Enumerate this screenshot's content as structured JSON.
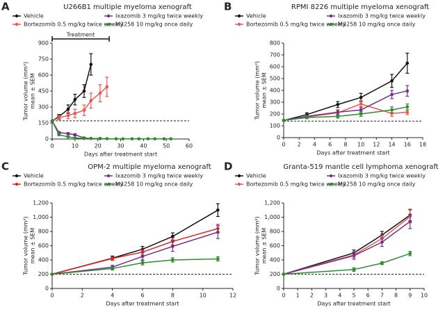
{
  "chart_data": [
    {
      "type": "line",
      "panel": "A",
      "title": "U266B1 multiple myeloma xenograft",
      "xlabel": "Days after treatment start",
      "ylabel": [
        "Tumor volume (mm³)",
        "mean ± SEM"
      ],
      "xlim": [
        0,
        60
      ],
      "xticks": [
        0,
        10,
        20,
        30,
        40,
        50,
        60
      ],
      "ylim": [
        0,
        900
      ],
      "yticks": [
        0,
        150,
        300,
        450,
        600,
        750,
        900
      ],
      "reference_line": 170,
      "treatment": {
        "label": "Treatment",
        "start": 0,
        "end": 25
      },
      "series": [
        {
          "name": "Vehicle",
          "color": "#111111",
          "x": [
            0,
            3,
            7,
            10,
            14,
            17
          ],
          "values": [
            170,
            210,
            280,
            370,
            450,
            700
          ],
          "errors": [
            0,
            20,
            40,
            50,
            60,
            100
          ]
        },
        {
          "name": "Bortezomib 0.5 mg/kg twice weekly",
          "color": "#e8584f",
          "x": [
            0,
            3,
            7,
            10,
            14,
            17,
            21,
            24
          ],
          "values": [
            170,
            200,
            220,
            240,
            270,
            360,
            430,
            490
          ],
          "errors": [
            0,
            20,
            30,
            40,
            50,
            70,
            80,
            90
          ]
        },
        {
          "name": "Ixazomib 3 mg/kg twice weekly",
          "color": "#7b2d8e",
          "x": [
            0,
            3,
            7,
            10,
            14,
            17,
            21
          ],
          "values": [
            170,
            60,
            50,
            40,
            10,
            5,
            5
          ],
          "errors": [
            0,
            10,
            10,
            10,
            5,
            3,
            3
          ]
        },
        {
          "name": "M3258 10 mg/kg once daily",
          "color": "#2e8b2e",
          "x": [
            0,
            3,
            7,
            10,
            14,
            17,
            21,
            24,
            28,
            31,
            35,
            38,
            42,
            45,
            49,
            52
          ],
          "values": [
            170,
            40,
            20,
            10,
            5,
            5,
            3,
            3,
            2,
            2,
            2,
            2,
            2,
            2,
            2,
            2
          ],
          "errors": [
            0,
            8,
            5,
            3,
            2,
            2,
            1,
            1,
            1,
            1,
            1,
            1,
            1,
            1,
            1,
            1
          ]
        }
      ]
    },
    {
      "type": "line",
      "panel": "B",
      "title": "RPMI 8226 multiple myeloma xenograft",
      "xlabel": "Days after treatment start",
      "ylabel": [
        "Tumor volume (mm³)",
        "mean ± SEM"
      ],
      "xlim": [
        0,
        18
      ],
      "xticks": [
        0,
        2,
        4,
        6,
        8,
        10,
        12,
        14,
        16,
        18
      ],
      "ylim": [
        0,
        800
      ],
      "yticks": [
        0,
        100,
        200,
        300,
        400,
        500,
        600,
        700,
        800
      ],
      "reference_line": 140,
      "series": [
        {
          "name": "Vehicle",
          "color": "#111111",
          "x": [
            0,
            3,
            7,
            10,
            14,
            16
          ],
          "values": [
            145,
            195,
            280,
            340,
            480,
            630
          ],
          "errors": [
            0,
            15,
            25,
            35,
            55,
            85
          ]
        },
        {
          "name": "Bortezomib 0.5 mg/kg twice weekly",
          "color": "#e8584f",
          "x": [
            0,
            3,
            7,
            10,
            14,
            16
          ],
          "values": [
            145,
            175,
            210,
            285,
            205,
            215
          ],
          "errors": [
            0,
            10,
            20,
            30,
            25,
            20
          ]
        },
        {
          "name": "Ixazomib 3 mg/kg twice weekly",
          "color": "#7b2d8e",
          "x": [
            0,
            3,
            7,
            10,
            14,
            16
          ],
          "values": [
            145,
            180,
            215,
            235,
            365,
            395
          ],
          "errors": [
            0,
            12,
            20,
            25,
            35,
            45
          ]
        },
        {
          "name": "M3258 10 mg/kg once daily",
          "color": "#2e8b2e",
          "x": [
            0,
            3,
            7,
            10,
            14,
            16
          ],
          "values": [
            145,
            170,
            180,
            200,
            235,
            260
          ],
          "errors": [
            0,
            10,
            15,
            20,
            25,
            25
          ]
        }
      ]
    },
    {
      "type": "line",
      "panel": "C",
      "title": "OPM-2 multiple myeloma xenograft",
      "xlabel": "Days after treatment start",
      "ylabel": [
        "Tumor volume (mm³)",
        "mean ± SEM"
      ],
      "xlim": [
        0,
        12
      ],
      "xticks": [
        0,
        2,
        4,
        6,
        8,
        10,
        12
      ],
      "ylim": [
        0,
        1200
      ],
      "yticks": [
        0,
        200,
        400,
        600,
        800,
        {
          "value": 1000,
          "label": "1,000"
        },
        {
          "value": 1200,
          "label": "1,200"
        }
      ],
      "reference_line": 200,
      "series": [
        {
          "name": "Vehicle",
          "color": "#111111",
          "x": [
            0,
            4,
            6,
            8,
            11
          ],
          "values": [
            200,
            425,
            550,
            730,
            1100
          ],
          "errors": [
            0,
            30,
            40,
            50,
            90
          ]
        },
        {
          "name": "Bortezomib 0.5 mg/kg twice weekly",
          "color": "#d8281e",
          "x": [
            0,
            4,
            6,
            8,
            11
          ],
          "values": [
            200,
            420,
            510,
            660,
            840
          ],
          "errors": [
            0,
            25,
            40,
            50,
            60
          ]
        },
        {
          "name": "Ixazomib  3 mg/kg twice weekly",
          "color": "#7b2d8e",
          "x": [
            0,
            4,
            6,
            8,
            11
          ],
          "values": [
            200,
            300,
            450,
            590,
            790
          ],
          "errors": [
            0,
            25,
            50,
            70,
            90
          ]
        },
        {
          "name": "M3258  10 mg/kg once daily",
          "color": "#2e8b2e",
          "x": [
            0,
            4,
            6,
            8,
            11
          ],
          "values": [
            200,
            280,
            360,
            400,
            415
          ],
          "errors": [
            0,
            20,
            30,
            30,
            30
          ]
        }
      ]
    },
    {
      "type": "line",
      "panel": "D",
      "title": "Granta-519 mantle cell lymphoma xenograft",
      "xlabel": "Days after treatment start",
      "ylabel": [
        "Tumor volume (mm³)",
        "mean ± SEM"
      ],
      "xlim": [
        0,
        10
      ],
      "xticks": [
        0,
        1,
        2,
        3,
        4,
        5,
        6,
        7,
        8,
        9,
        10
      ],
      "ylim": [
        0,
        1200
      ],
      "yticks": [
        0,
        200,
        400,
        600,
        800,
        {
          "value": 1000,
          "label": "1,000"
        },
        {
          "value": 1200,
          "label": "1,200"
        }
      ],
      "reference_line": 200,
      "series": [
        {
          "name": "Vehicle",
          "color": "#111111",
          "x": [
            0,
            5,
            7,
            9
          ],
          "values": [
            200,
            500,
            750,
            1030
          ],
          "errors": [
            0,
            40,
            50,
            80
          ]
        },
        {
          "name": "Bortezomib  0.5 mg/kg twice weekly",
          "color": "#e8584f",
          "x": [
            0,
            5,
            7,
            9
          ],
          "values": [
            200,
            470,
            700,
            1010
          ],
          "errors": [
            0,
            40,
            50,
            90
          ]
        },
        {
          "name": "Ixazomib  3 mg/kg twice weekly",
          "color": "#7b2d8e",
          "x": [
            0,
            5,
            7,
            9
          ],
          "values": [
            200,
            460,
            650,
            940
          ],
          "errors": [
            0,
            50,
            60,
            100
          ]
        },
        {
          "name": "M3258  10 mg/kg once daily",
          "color": "#2e8b2e",
          "x": [
            0,
            5,
            7,
            9
          ],
          "values": [
            200,
            265,
            355,
            490
          ],
          "errors": [
            0,
            25,
            20,
            30
          ]
        }
      ]
    }
  ]
}
